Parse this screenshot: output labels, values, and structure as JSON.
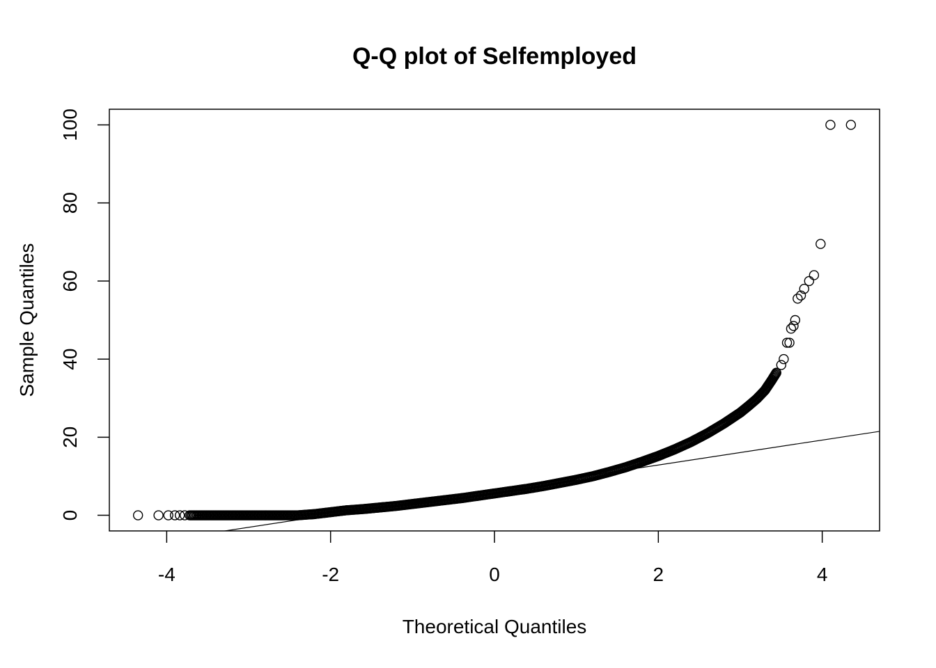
{
  "chart_data": {
    "type": "scatter",
    "title": "Q-Q plot of Selfemployed",
    "xlabel": "Theoretical Quantiles",
    "ylabel": "Sample Quantiles",
    "xlim": [
      -4.7,
      4.7
    ],
    "ylim": [
      -4,
      104
    ],
    "xticks": [
      -4,
      -2,
      0,
      2,
      4
    ],
    "yticks": [
      0,
      20,
      40,
      60,
      80,
      100
    ],
    "grid": false,
    "reference_line": {
      "x": [
        -4.7,
        4.7
      ],
      "y": [
        -8.5,
        21.5
      ]
    },
    "points": [
      {
        "x": -4.35,
        "y": 0
      },
      {
        "x": -4.1,
        "y": 0
      },
      {
        "x": -3.98,
        "y": 0
      },
      {
        "x": -3.9,
        "y": 0
      },
      {
        "x": -3.84,
        "y": 0
      },
      {
        "x": -3.78,
        "y": 0
      },
      {
        "x": -3.72,
        "y": 0
      },
      {
        "x": -3.6,
        "y": 0
      },
      {
        "x": -3.4,
        "y": 0
      },
      {
        "x": -3.2,
        "y": 0
      },
      {
        "x": -3.0,
        "y": 0
      },
      {
        "x": -2.8,
        "y": 0
      },
      {
        "x": -2.6,
        "y": 0
      },
      {
        "x": -2.4,
        "y": 0
      },
      {
        "x": -2.2,
        "y": 0.3
      },
      {
        "x": -2.0,
        "y": 0.8
      },
      {
        "x": -1.8,
        "y": 1.3
      },
      {
        "x": -1.6,
        "y": 1.6
      },
      {
        "x": -1.4,
        "y": 2.0
      },
      {
        "x": -1.2,
        "y": 2.4
      },
      {
        "x": -1.0,
        "y": 2.9
      },
      {
        "x": -0.8,
        "y": 3.4
      },
      {
        "x": -0.6,
        "y": 3.9
      },
      {
        "x": -0.4,
        "y": 4.4
      },
      {
        "x": -0.2,
        "y": 5.0
      },
      {
        "x": 0.0,
        "y": 5.6
      },
      {
        "x": 0.2,
        "y": 6.2
      },
      {
        "x": 0.4,
        "y": 6.8
      },
      {
        "x": 0.6,
        "y": 7.5
      },
      {
        "x": 0.8,
        "y": 8.3
      },
      {
        "x": 1.0,
        "y": 9.1
      },
      {
        "x": 1.2,
        "y": 10.0
      },
      {
        "x": 1.4,
        "y": 11.1
      },
      {
        "x": 1.6,
        "y": 12.3
      },
      {
        "x": 1.8,
        "y": 13.7
      },
      {
        "x": 2.0,
        "y": 15.2
      },
      {
        "x": 2.2,
        "y": 16.9
      },
      {
        "x": 2.4,
        "y": 18.8
      },
      {
        "x": 2.6,
        "y": 21.0
      },
      {
        "x": 2.8,
        "y": 23.5
      },
      {
        "x": 3.0,
        "y": 26.3
      },
      {
        "x": 3.1,
        "y": 28.0
      },
      {
        "x": 3.2,
        "y": 29.8
      },
      {
        "x": 3.3,
        "y": 32.0
      },
      {
        "x": 3.38,
        "y": 34.5
      },
      {
        "x": 3.44,
        "y": 36.5
      },
      {
        "x": 3.5,
        "y": 38.5
      },
      {
        "x": 3.53,
        "y": 40.0
      },
      {
        "x": 3.57,
        "y": 44.2
      },
      {
        "x": 3.6,
        "y": 44.2
      },
      {
        "x": 3.62,
        "y": 47.8
      },
      {
        "x": 3.65,
        "y": 48.5
      },
      {
        "x": 3.67,
        "y": 50.0
      },
      {
        "x": 3.7,
        "y": 55.5
      },
      {
        "x": 3.74,
        "y": 56.3
      },
      {
        "x": 3.78,
        "y": 58.0
      },
      {
        "x": 3.84,
        "y": 60.0
      },
      {
        "x": 3.9,
        "y": 61.5
      },
      {
        "x": 3.98,
        "y": 69.5
      },
      {
        "x": 4.1,
        "y": 100.0
      },
      {
        "x": 4.35,
        "y": 100.0
      }
    ]
  }
}
